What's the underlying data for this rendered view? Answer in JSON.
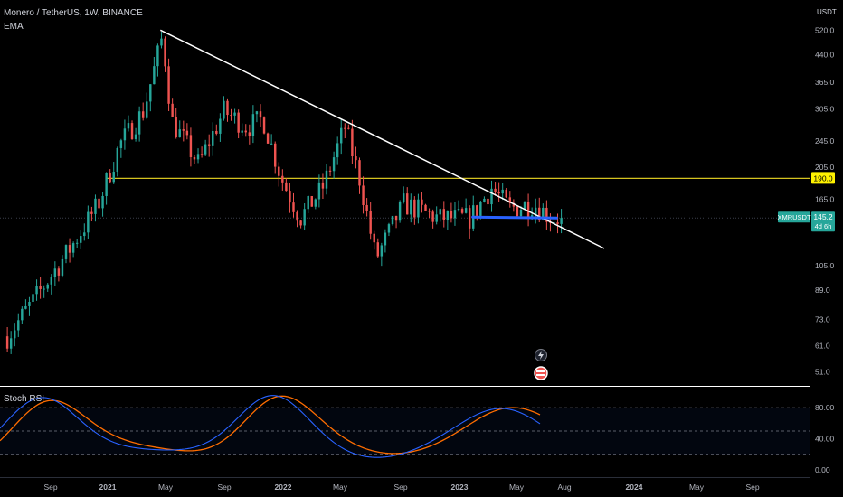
{
  "header": {
    "title": "Monero / TetherUS, 1W, BINANCE",
    "indicator": "EMA",
    "currency": "USDT"
  },
  "oscillator": {
    "name": "Stoch RSI",
    "ticks": [
      "80.00",
      "40.00",
      "0.00"
    ]
  },
  "price_tag": {
    "symbol": "XMRUSDT",
    "price": "145.2",
    "countdown": "4d 6h"
  },
  "level_tag": "190.0",
  "chart_data": [
    {
      "type": "candlestick",
      "title": "Monero / TetherUS, 1W, BINANCE",
      "y_scale": "log",
      "ylim": [
        47,
        600
      ],
      "y_ticks": [
        520.0,
        440.0,
        365.0,
        305.0,
        245.0,
        205.0,
        165.0,
        105.0,
        89.0,
        73.0,
        61.0,
        51.0
      ],
      "x_ticks": [
        "Sep",
        "2021",
        "May",
        "Sep",
        "2022",
        "May",
        "Sep",
        "2023",
        "May",
        "Aug",
        "2024",
        "May",
        "Sep"
      ],
      "anchor_points": [
        {
          "date": "2020-07-15",
          "close": 65
        },
        {
          "date": "2020-09-15",
          "close": 88
        },
        {
          "date": "2020-11-15",
          "close": 120
        },
        {
          "date": "2021-01-05",
          "close": 160
        },
        {
          "date": "2021-02-15",
          "close": 240
        },
        {
          "date": "2021-04-01",
          "close": 300
        },
        {
          "date": "2021-05-07",
          "close": 500
        },
        {
          "date": "2021-05-25",
          "close": 280
        },
        {
          "date": "2021-07-15",
          "close": 210
        },
        {
          "date": "2021-09-01",
          "close": 300
        },
        {
          "date": "2021-10-15",
          "close": 270
        },
        {
          "date": "2021-11-15",
          "close": 285
        },
        {
          "date": "2021-12-20",
          "close": 190
        },
        {
          "date": "2022-01-25",
          "close": 145
        },
        {
          "date": "2022-03-10",
          "close": 180
        },
        {
          "date": "2022-04-20",
          "close": 270
        },
        {
          "date": "2022-05-20",
          "close": 185
        },
        {
          "date": "2022-06-18",
          "close": 110
        },
        {
          "date": "2022-08-10",
          "close": 160
        },
        {
          "date": "2022-10-15",
          "close": 145
        },
        {
          "date": "2022-12-15",
          "close": 145
        },
        {
          "date": "2023-01-25",
          "close": 178
        },
        {
          "date": "2023-03-01",
          "close": 155
        },
        {
          "date": "2023-04-15",
          "close": 160
        },
        {
          "date": "2023-05-20",
          "close": 145
        },
        {
          "date": "2023-06-12",
          "close": 145.2
        }
      ],
      "last_price": 145.2,
      "horizontal_level": 190.0,
      "trendline": [
        {
          "date": "2021-05-03",
          "price": 520
        },
        {
          "date": "2023-08-28",
          "price": 118
        }
      ],
      "ema_segment": {
        "start": "2022-12-20",
        "end": "2023-05-29",
        "price": 146
      }
    },
    {
      "type": "line",
      "title": "Stoch RSI",
      "ylim": [
        0,
        100
      ],
      "y_ticks": [
        80,
        40,
        0
      ],
      "band": [
        20,
        80
      ],
      "midline": 50
    }
  ]
}
